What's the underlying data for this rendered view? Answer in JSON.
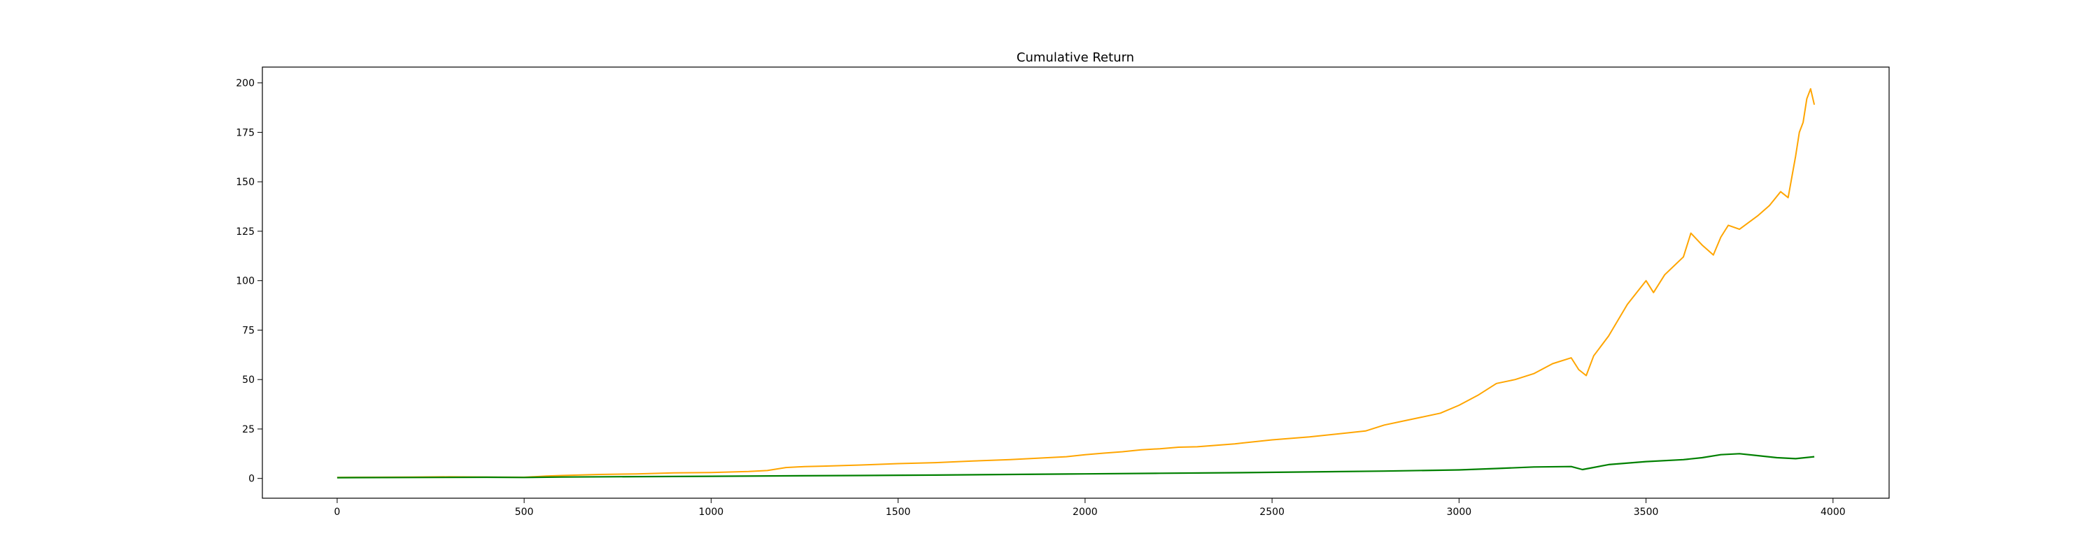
{
  "chart_data": {
    "type": "line",
    "title": "Cumulative Return",
    "xlabel": "",
    "ylabel": "",
    "xlim": [
      -200,
      4150
    ],
    "ylim": [
      -10,
      208
    ],
    "xticks": [
      0,
      500,
      1000,
      1500,
      2000,
      2500,
      3000,
      3500,
      4000
    ],
    "yticks": [
      0,
      25,
      50,
      75,
      100,
      125,
      150,
      175,
      200
    ],
    "grid": false,
    "legend": "none",
    "series": [
      {
        "color": "#ffa500",
        "x": [
          0,
          100,
          200,
          300,
          400,
          500,
          560,
          600,
          700,
          800,
          900,
          1000,
          1100,
          1150,
          1200,
          1250,
          1300,
          1400,
          1500,
          1600,
          1700,
          1800,
          1900,
          1950,
          2000,
          2050,
          2100,
          2150,
          2200,
          2250,
          2300,
          2400,
          2500,
          2600,
          2700,
          2750,
          2800,
          2850,
          2900,
          2950,
          3000,
          3050,
          3100,
          3150,
          3200,
          3250,
          3300,
          3320,
          3340,
          3360,
          3400,
          3450,
          3500,
          3520,
          3550,
          3600,
          3620,
          3650,
          3680,
          3700,
          3720,
          3750,
          3800,
          3830,
          3860,
          3880,
          3900,
          3910,
          3920,
          3930,
          3940,
          3950
        ],
        "y": [
          0.5,
          0.6,
          0.7,
          0.8,
          0.7,
          0.6,
          1.2,
          1.5,
          2.0,
          2.3,
          2.8,
          3.0,
          3.5,
          4.0,
          5.5,
          6.0,
          6.2,
          6.8,
          7.5,
          8.0,
          8.8,
          9.5,
          10.5,
          11.0,
          12.0,
          12.8,
          13.5,
          14.5,
          15.0,
          15.8,
          16.0,
          17.5,
          19.5,
          21.0,
          23.0,
          24.0,
          27.0,
          29.0,
          31.0,
          33.0,
          37.0,
          42.0,
          48.0,
          50.0,
          53.0,
          58.0,
          61.0,
          55.0,
          52.0,
          62.0,
          72.0,
          88.0,
          100.0,
          94.0,
          103.0,
          112.0,
          124.0,
          118.0,
          113.0,
          122.0,
          128.0,
          126.0,
          133.0,
          138.0,
          145.0,
          142.0,
          163.0,
          175.0,
          180.0,
          192.0,
          197.0,
          189.0
        ]
      },
      {
        "color": "#008000",
        "x": [
          0,
          200,
          400,
          500,
          600,
          800,
          1000,
          1200,
          1400,
          1600,
          1800,
          2000,
          2200,
          2400,
          2600,
          2800,
          3000,
          3100,
          3200,
          3300,
          3330,
          3350,
          3400,
          3500,
          3600,
          3650,
          3700,
          3750,
          3800,
          3850,
          3900,
          3950
        ],
        "y": [
          0.4,
          0.5,
          0.6,
          0.5,
          0.7,
          0.9,
          1.1,
          1.3,
          1.5,
          1.7,
          2.0,
          2.3,
          2.6,
          2.9,
          3.3,
          3.7,
          4.3,
          5.0,
          5.8,
          6.0,
          4.5,
          5.2,
          7.0,
          8.5,
          9.5,
          10.5,
          12.0,
          12.5,
          11.5,
          10.5,
          10.0,
          11.0
        ]
      }
    ]
  }
}
